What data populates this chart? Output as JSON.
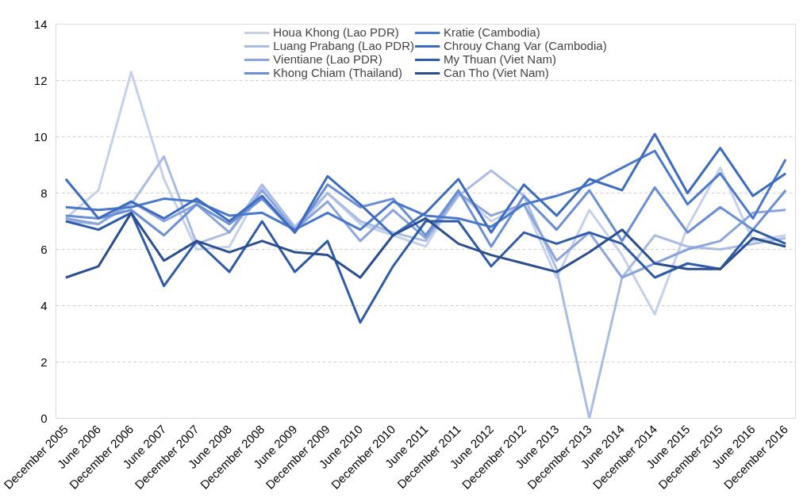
{
  "chart_data": {
    "type": "line",
    "categories": [
      "December 2005",
      "June 2006",
      "December 2006",
      "June 2007",
      "December 2007",
      "June 2008",
      "December 2008",
      "June 2009",
      "December 2009",
      "June 2010",
      "December 2010",
      "June 2011",
      "December 2011",
      "June 2012",
      "December 2012",
      "June 2013",
      "December 2013",
      "June 2014",
      "December 2014",
      "June 2015",
      "December 2015",
      "June 2016",
      "December 2016"
    ],
    "series": [
      {
        "name": "Houa Khong (Lao PDR)",
        "color": "#c5d0ea",
        "values": [
          7.1,
          8.1,
          12.3,
          8.5,
          6.0,
          6.1,
          8.2,
          6.6,
          8.0,
          6.9,
          6.5,
          6.1,
          8.0,
          7.0,
          7.6,
          5.0,
          7.4,
          5.8,
          3.7,
          6.8,
          8.9,
          6.3,
          6.5
        ]
      },
      {
        "name": "Luang Prabang (Lao PDR)",
        "color": "#a9bce3",
        "values": [
          7.0,
          6.9,
          7.6,
          9.3,
          6.2,
          6.6,
          8.3,
          6.8,
          8.0,
          7.0,
          6.6,
          6.3,
          7.9,
          8.8,
          7.9,
          5.3,
          0.0,
          5.0,
          6.5,
          6.1,
          6.0,
          6.2,
          6.4
        ]
      },
      {
        "name": "Vientiane (Lao PDR)",
        "color": "#8aa5dc",
        "values": [
          7.1,
          6.9,
          7.7,
          7.0,
          7.6,
          6.6,
          8.1,
          6.7,
          7.7,
          6.3,
          7.4,
          6.4,
          8.0,
          7.2,
          7.6,
          5.6,
          6.6,
          5.0,
          5.5,
          6.0,
          6.3,
          7.3,
          7.4
        ]
      },
      {
        "name": "Khong Chiam (Thailand)",
        "color": "#6a8fd4",
        "values": [
          7.2,
          7.1,
          7.4,
          6.5,
          7.6,
          6.9,
          7.8,
          6.6,
          8.3,
          7.5,
          7.8,
          6.5,
          8.1,
          6.1,
          7.9,
          6.7,
          8.1,
          6.3,
          8.2,
          6.6,
          7.5,
          6.7,
          8.1
        ]
      },
      {
        "name": "Kratie (Cambodia)",
        "color": "#4a79cc",
        "values": [
          7.5,
          7.4,
          7.5,
          7.8,
          7.7,
          7.2,
          7.3,
          6.7,
          7.3,
          6.7,
          7.7,
          7.2,
          7.1,
          6.8,
          7.6,
          7.9,
          8.3,
          8.9,
          9.5,
          7.6,
          8.7,
          7.1,
          9.2
        ]
      },
      {
        "name": "Chrouy Chang Var (Cambodia)",
        "color": "#3c6bc0",
        "values": [
          8.5,
          7.1,
          7.7,
          7.1,
          7.8,
          7.0,
          7.9,
          6.6,
          8.6,
          7.6,
          6.5,
          7.3,
          8.5,
          6.6,
          8.3,
          7.2,
          8.5,
          8.1,
          10.1,
          8.0,
          9.6,
          7.9,
          8.7
        ]
      },
      {
        "name": "My Thuan (Viet Nam)",
        "color": "#2f5ca8",
        "values": [
          7.0,
          6.7,
          7.3,
          4.7,
          6.3,
          5.2,
          7.0,
          5.2,
          6.3,
          3.4,
          5.4,
          7.0,
          7.0,
          5.4,
          6.6,
          6.2,
          6.6,
          6.2,
          5.0,
          5.5,
          5.3,
          6.7,
          6.2
        ]
      },
      {
        "name": "Can Tho (Viet Nam)",
        "color": "#2a4f8f",
        "values": [
          5.0,
          5.4,
          7.3,
          5.6,
          6.3,
          5.9,
          6.3,
          5.9,
          5.8,
          5.0,
          6.5,
          7.1,
          6.2,
          5.8,
          5.5,
          5.2,
          5.9,
          6.7,
          5.5,
          5.3,
          5.3,
          6.4,
          6.1
        ]
      }
    ],
    "ylim": [
      0,
      14
    ],
    "yticks": [
      0,
      2,
      4,
      6,
      8,
      10,
      12,
      14
    ],
    "grid": "y",
    "legend": "top",
    "line_style": "solid",
    "marker": "none"
  }
}
